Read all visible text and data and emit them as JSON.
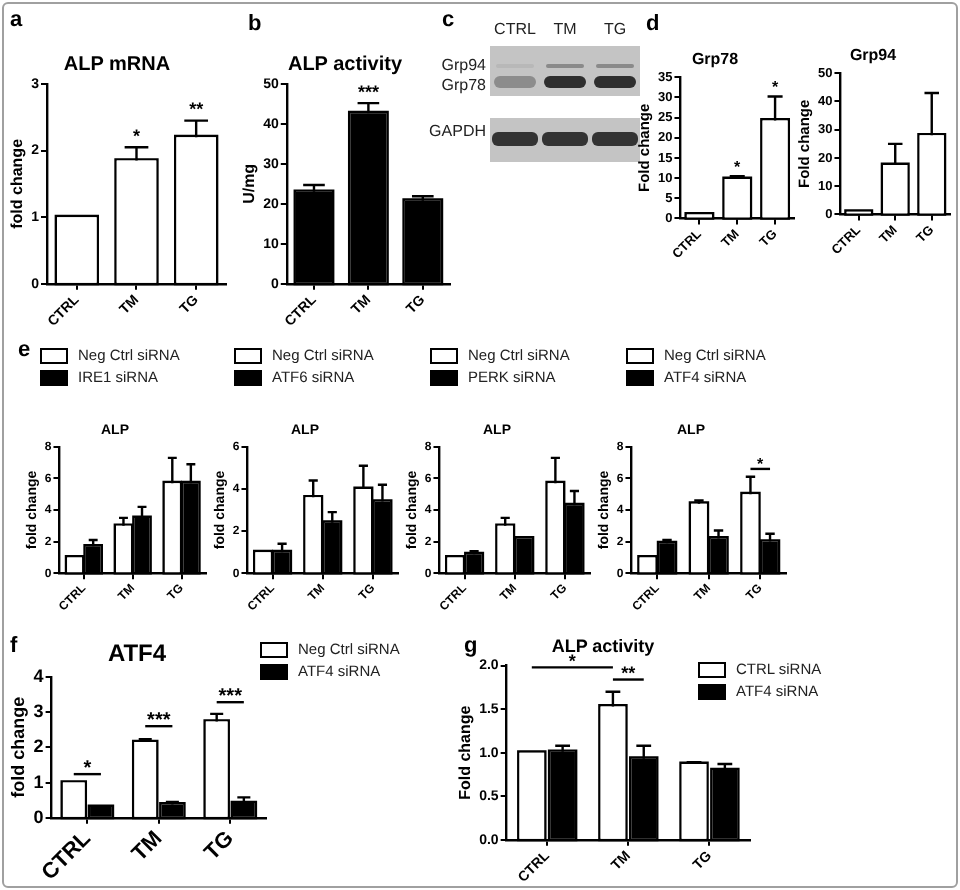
{
  "chart_data": [
    {
      "type": "bar",
      "title": "ALP mRNA",
      "ylabel": "fold change",
      "categories": [
        "CTRL",
        "TM",
        "TG"
      ],
      "series": [
        {
          "color": "#ffffff",
          "values": [
            1,
            1.85,
            2.2
          ],
          "errors": [
            null,
            [
              1.85,
              2.05
            ],
            [
              2.2,
              2.45
            ]
          ]
        }
      ],
      "ylim": [
        0,
        3
      ],
      "yticks": [
        0,
        1,
        2,
        3
      ],
      "annotations": [
        "a",
        {
          "text": "*",
          "x": "TM",
          "y": 2.1
        },
        {
          "text": "**",
          "x": "TG",
          "y": 2.5
        }
      ]
    },
    {
      "type": "bar",
      "title": "ALP activity",
      "ylabel": "U/mg",
      "categories": [
        "CTRL",
        "TM",
        "TG"
      ],
      "series": [
        {
          "color": "#000000",
          "values": [
            23,
            42.7,
            20.8
          ],
          "errors": [
            [
              23,
              24.7
            ],
            [
              42.7,
              45.2
            ],
            [
              20.8,
              21.9
            ]
          ]
        }
      ],
      "ylim": [
        0,
        50
      ],
      "yticks": [
        0,
        10,
        20,
        30,
        40,
        50
      ],
      "annotations": [
        "b",
        {
          "text": "***",
          "x": "TM",
          "y": 46
        }
      ]
    },
    {
      "type": "other",
      "categories": [
        "CTRL",
        "TM",
        "TG"
      ],
      "annotations": [
        "c",
        "Grp94",
        "Grp78",
        "GAPDH"
      ]
    },
    {
      "type": "bar",
      "title": "Grp78",
      "ylabel": "Fold change",
      "categories": [
        "CTRL",
        "TM",
        "TG"
      ],
      "series": [
        {
          "color": "#ffffff",
          "values": [
            1,
            9.8,
            24.3
          ],
          "errors": [
            null,
            [
              9.8,
              10.5
            ],
            [
              24.3,
              30.2
            ]
          ]
        }
      ],
      "ylim": [
        0,
        35
      ],
      "yticks": [
        0,
        5,
        10,
        15,
        20,
        25,
        30,
        35
      ],
      "annotations": [
        "d",
        {
          "text": "*",
          "x": "TM",
          "y": 11
        },
        {
          "text": "*",
          "x": "TG",
          "y": 31
        }
      ]
    },
    {
      "type": "bar",
      "title": "Grp94",
      "ylabel": "Fold change",
      "categories": [
        "CTRL",
        "TM",
        "TG"
      ],
      "series": [
        {
          "color": "#ffffff",
          "values": [
            1,
            17.5,
            28
          ],
          "errors": [
            null,
            [
              17.5,
              25
            ],
            [
              28,
              43
            ]
          ]
        }
      ],
      "ylim": [
        0,
        50
      ],
      "yticks": [
        0,
        10,
        20,
        30,
        40,
        50
      ]
    },
    {
      "type": "bar",
      "title": "ALP",
      "ylabel": "fold change",
      "categories": [
        "CTRL",
        "TM",
        "TG"
      ],
      "series": [
        {
          "name": "Neg Ctrl siRNA",
          "color": "#ffffff",
          "values": [
            1,
            3,
            5.7
          ],
          "errors": [
            null,
            [
              3,
              3.5
            ],
            [
              5.7,
              7.3
            ]
          ]
        },
        {
          "name": "IRE1 siRNA",
          "color": "#000000",
          "values": [
            1.7,
            3.5,
            5.7
          ],
          "errors": [
            [
              1.7,
              2.1
            ],
            [
              3.5,
              4.2
            ],
            [
              5.7,
              6.9
            ]
          ]
        }
      ],
      "ylim": [
        0,
        8
      ],
      "yticks": [
        0,
        2,
        4,
        6,
        8
      ],
      "legend": "top left",
      "annotations": [
        "e"
      ]
    },
    {
      "type": "bar",
      "title": "ALP",
      "ylabel": "fold change",
      "categories": [
        "CTRL",
        "TM",
        "TG"
      ],
      "series": [
        {
          "name": "Neg Ctrl siRNA",
          "color": "#ffffff",
          "values": [
            1,
            3.6,
            4
          ],
          "errors": [
            null,
            [
              3.6,
              4.4
            ],
            [
              4,
              5.1
            ]
          ]
        },
        {
          "name": "ATF6 siRNA",
          "color": "#000000",
          "values": [
            1,
            2.4,
            3.4
          ],
          "errors": [
            [
              1,
              1.4
            ],
            [
              2.4,
              2.9
            ],
            [
              3.4,
              4.2
            ]
          ]
        }
      ],
      "ylim": [
        0,
        6
      ],
      "yticks": [
        0,
        2,
        4,
        6
      ],
      "legend": "top left"
    },
    {
      "type": "bar",
      "title": "ALP",
      "ylabel": "fold change",
      "categories": [
        "CTRL",
        "TM",
        "TG"
      ],
      "series": [
        {
          "name": "Neg Ctrl siRNA",
          "color": "#ffffff",
          "values": [
            1,
            3,
            5.7
          ],
          "errors": [
            null,
            [
              3,
              3.5
            ],
            [
              5.7,
              7.3
            ]
          ]
        },
        {
          "name": "PERK siRNA",
          "color": "#000000",
          "values": [
            1.2,
            2.2,
            4.3
          ],
          "errors": [
            [
              1.2,
              1.4
            ],
            null,
            [
              4.3,
              5.2
            ]
          ]
        }
      ],
      "ylim": [
        0,
        8
      ],
      "yticks": [
        0,
        2,
        4,
        6,
        8
      ],
      "legend": "top left"
    },
    {
      "type": "bar",
      "title": "ALP",
      "ylabel": "fold change",
      "categories": [
        "CTRL",
        "TM",
        "TG"
      ],
      "series": [
        {
          "name": "Neg Ctrl siRNA",
          "color": "#ffffff",
          "values": [
            1,
            4.4,
            5
          ],
          "errors": [
            null,
            [
              4.4,
              4.6
            ],
            [
              5,
              6.1
            ]
          ]
        },
        {
          "name": "ATF4 siRNA",
          "color": "#000000",
          "values": [
            1.9,
            2.2,
            2
          ],
          "errors": [
            [
              1.9,
              2.1
            ],
            [
              2.2,
              2.7
            ],
            [
              2,
              2.5
            ]
          ]
        }
      ],
      "ylim": [
        0,
        8
      ],
      "yticks": [
        0,
        2,
        4,
        6,
        8
      ],
      "legend": "top left",
      "annotations": [
        {
          "text": "*",
          "x": "TG",
          "y": 6.6
        }
      ]
    },
    {
      "type": "bar",
      "title": "ATF4",
      "ylabel": "fold change",
      "categories": [
        "CTRL",
        "TM",
        "TG"
      ],
      "series": [
        {
          "name": "Neg Ctrl siRNA",
          "color": "#ffffff",
          "values": [
            1,
            2.15,
            2.73
          ],
          "errors": [
            null,
            [
              2.15,
              2.23
            ],
            [
              2.73,
              2.95
            ]
          ]
        },
        {
          "name": "ATF4 siRNA",
          "color": "#000000",
          "values": [
            0.31,
            0.38,
            0.42
          ],
          "errors": [
            [
              0.31,
              0.33
            ],
            [
              0.38,
              0.45
            ],
            [
              0.42,
              0.58
            ]
          ]
        }
      ],
      "ylim": [
        0,
        4
      ],
      "yticks": [
        0,
        1,
        2,
        3,
        4
      ],
      "legend": "top right",
      "annotations": [
        "f",
        "*",
        "***",
        "***"
      ]
    },
    {
      "type": "bar",
      "title": "ALP activity",
      "ylabel": "Fold change",
      "categories": [
        "CTRL",
        "TM",
        "TG"
      ],
      "series": [
        {
          "name": "CTRL siRNA",
          "color": "#ffffff",
          "values": [
            1,
            1.53,
            0.87
          ],
          "errors": [
            null,
            [
              1.53,
              1.7
            ],
            [
              0.87,
              0.89
            ]
          ]
        },
        {
          "name": "ATF4 siRNA",
          "color": "#000000",
          "values": [
            1.01,
            0.93,
            0.8
          ],
          "errors": [
            [
              1.01,
              1.08
            ],
            [
              0.93,
              1.08
            ],
            [
              0.8,
              0.87
            ]
          ]
        }
      ],
      "ylim": [
        0,
        2
      ],
      "yticks": [
        {
          "value": 0,
          "label": "0.0"
        },
        {
          "value": 0.5,
          "label": "0.5"
        },
        {
          "value": 1,
          "label": "1.0"
        },
        {
          "value": 1.5,
          "label": "1.5"
        },
        {
          "value": 2,
          "label": "2.0"
        }
      ],
      "legend": "top right",
      "annotations": [
        "g",
        "*",
        "**"
      ]
    }
  ]
}
